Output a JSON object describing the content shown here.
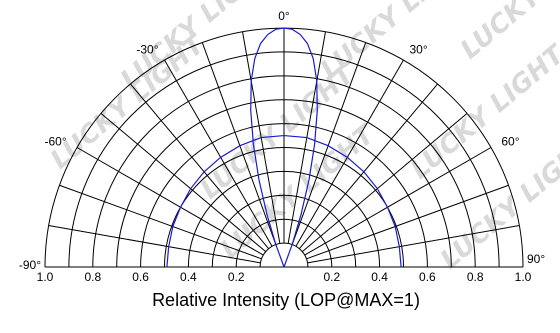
{
  "chart_data": {
    "type": "polar",
    "title": "Relative Intensity (LOP@MAX=1)",
    "radial_axis": {
      "range": [
        0,
        1
      ],
      "tick_labels_left": [
        "1.0",
        "0.8",
        "0.6",
        "0.4",
        "0.2"
      ],
      "tick_labels_right": [
        "0.2",
        "0.4",
        "0.6",
        "0.8",
        "1.0"
      ],
      "circles": [
        0.1,
        0.2,
        0.3,
        0.4,
        0.5,
        0.6,
        0.7,
        0.8,
        0.9,
        1.0
      ]
    },
    "angular_axis": {
      "range_deg": [
        -90,
        90
      ],
      "spoke_step_deg": 10,
      "labels": [
        "-90°",
        "-60°",
        "-30°",
        "0°",
        "30°",
        "60°",
        "90°"
      ]
    },
    "series": [
      {
        "color": "#1a1ad0",
        "points": [
          {
            "angle": 0,
            "r": 1.0
          },
          {
            "angle": 2,
            "r": 0.995
          },
          {
            "angle": 4,
            "r": 0.975
          },
          {
            "angle": 6,
            "r": 0.94
          },
          {
            "angle": 8,
            "r": 0.88
          },
          {
            "angle": 10,
            "r": 0.79
          },
          {
            "angle": 12,
            "r": 0.67
          },
          {
            "angle": 14,
            "r": 0.53
          },
          {
            "angle": 16,
            "r": 0.38
          },
          {
            "angle": 18,
            "r": 0.23
          },
          {
            "angle": 20,
            "r": 0.1
          },
          {
            "angle": 22,
            "r": 0.0
          }
        ]
      },
      {
        "color": "#1a1ad0",
        "points": [
          {
            "angle": 0,
            "r": 0.55
          },
          {
            "angle": 10,
            "r": 0.55
          },
          {
            "angle": 20,
            "r": 0.54
          },
          {
            "angle": 30,
            "r": 0.53
          },
          {
            "angle": 40,
            "r": 0.52
          },
          {
            "angle": 50,
            "r": 0.51
          },
          {
            "angle": 60,
            "r": 0.5
          },
          {
            "angle": 70,
            "r": 0.495
          },
          {
            "angle": 80,
            "r": 0.49
          },
          {
            "angle": 90,
            "r": 0.49
          }
        ]
      }
    ],
    "watermark_text": "LUCKY LIGHT"
  }
}
